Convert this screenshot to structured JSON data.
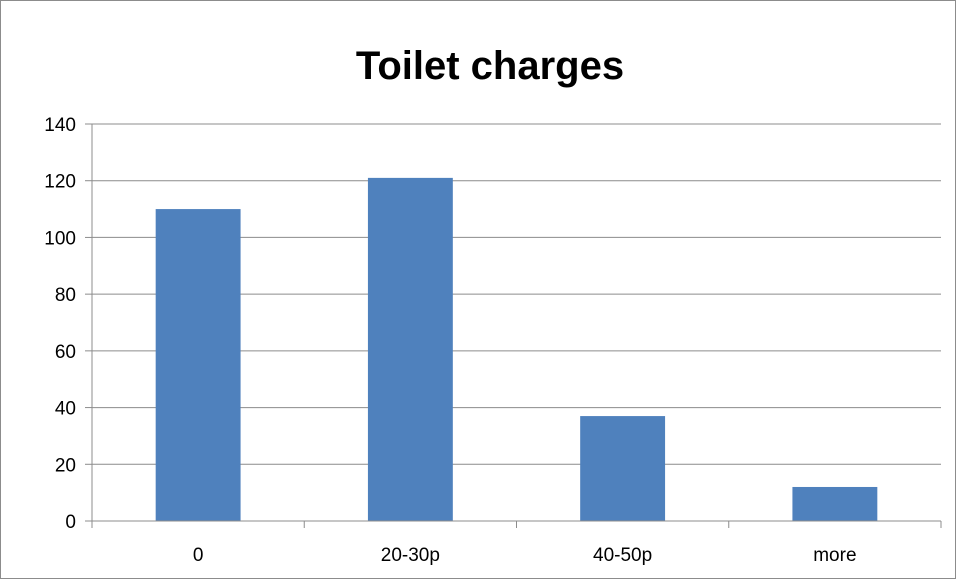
{
  "chart_data": {
    "type": "bar",
    "title": "Toilet charges",
    "xlabel": "",
    "ylabel": "",
    "categories": [
      "0",
      "20-30p",
      "40-50p",
      "more"
    ],
    "values": [
      110,
      121,
      37,
      12
    ],
    "ylim": [
      0,
      140
    ],
    "yticks": [
      0,
      20,
      40,
      60,
      80,
      100,
      120,
      140
    ],
    "grid": true,
    "legend": "none",
    "bar_color": "#4f81bd",
    "grid_color": "#8c8c8c"
  }
}
